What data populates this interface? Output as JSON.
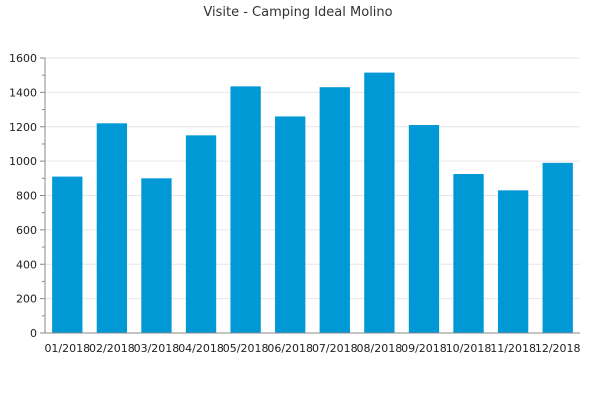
{
  "chart_data": {
    "type": "bar",
    "title": "Visite - Camping Ideal Molino",
    "xlabel": "",
    "ylabel": "",
    "categories": [
      "01/2018",
      "02/2018",
      "03/2018",
      "04/2018",
      "05/2018",
      "06/2018",
      "07/2018",
      "08/2018",
      "09/2018",
      "10/2018",
      "11/2018",
      "12/2018"
    ],
    "values": [
      910,
      1220,
      900,
      1150,
      1435,
      1260,
      1430,
      1515,
      1210,
      925,
      830,
      990
    ],
    "ylim": [
      0,
      1600
    ],
    "yticks": [
      0,
      200,
      400,
      600,
      800,
      1000,
      1200,
      1400,
      1600
    ],
    "grid": true,
    "legend": "none",
    "bar_color": "#0099d6"
  }
}
